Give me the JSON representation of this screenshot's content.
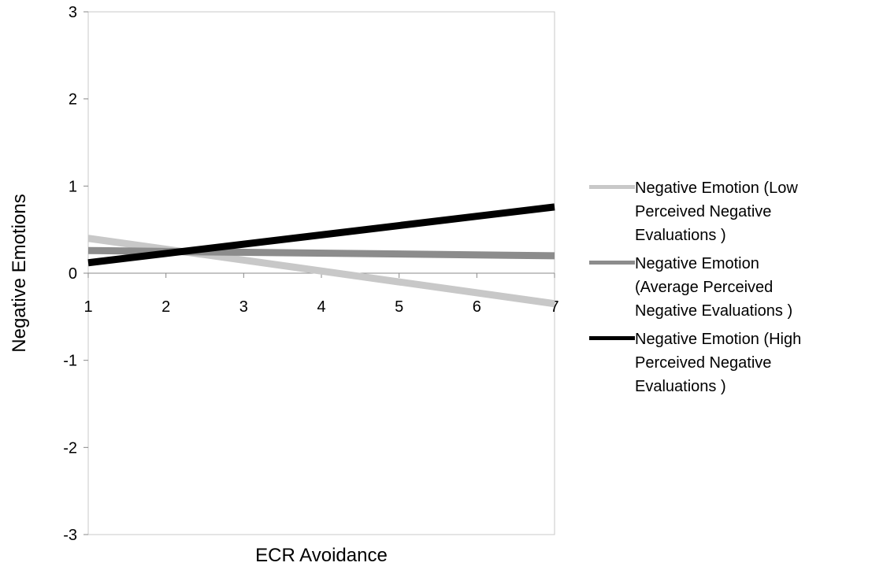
{
  "chart_data": {
    "type": "line",
    "title": "",
    "xlabel": "ECR Avoidance",
    "ylabel": "Negative Emotions",
    "x": [
      1,
      7
    ],
    "x_ticks": [
      "1",
      "2",
      "3",
      "4",
      "5",
      "6",
      "7"
    ],
    "y_ticks": [
      "3",
      "2",
      "1",
      "0",
      "-1",
      "-2",
      "-3"
    ],
    "ylim": [
      -3,
      3
    ],
    "xlim": [
      1,
      7
    ],
    "grid": false,
    "legend_position": "right",
    "series": [
      {
        "name": "Negative Emotion (Low Perceived Negative Evaluations )",
        "legend_text": "Negative Emotion (Low\nPerceived Negative\nEvaluations )",
        "values": [
          0.4,
          -0.35
        ],
        "color": "#c8c8c8"
      },
      {
        "name": "Negative  Emotion (Average Perceived Negative Evaluations )",
        "legend_text": "Negative  Emotion\n(Average Perceived\nNegative Evaluations )",
        "values": [
          0.26,
          0.2
        ],
        "color": "#8c8c8c"
      },
      {
        "name": "Negative  Emotion (High Perceived Negative Evaluations )",
        "legend_text": "Negative  Emotion (High\nPerceived Negative\nEvaluations )",
        "values": [
          0.12,
          0.76
        ],
        "color": "#000000"
      }
    ]
  }
}
